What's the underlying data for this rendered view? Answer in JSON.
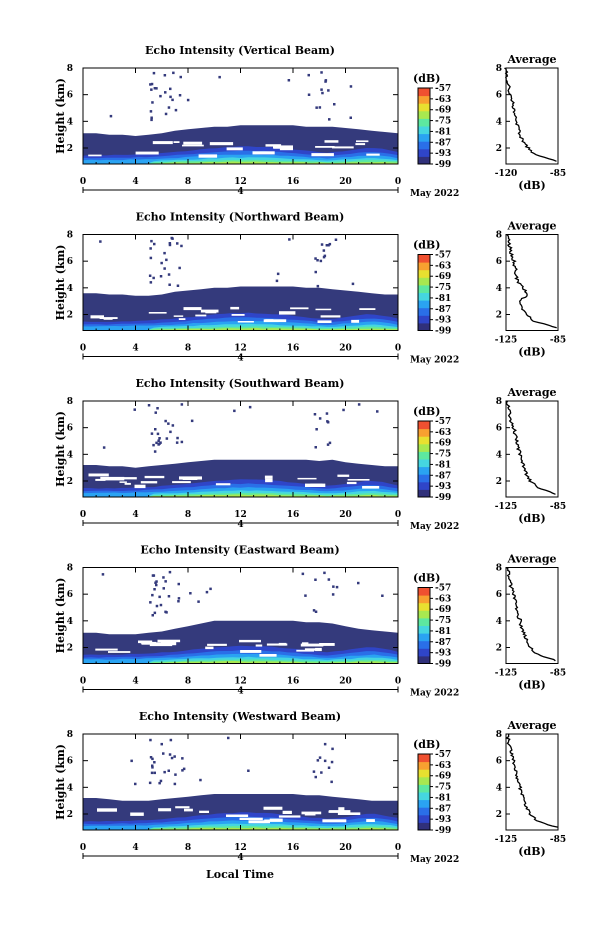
{
  "figure": {
    "xlabel": "Local Time",
    "date_label": "May 2022"
  },
  "chart_data": [
    {
      "type": "heatmap",
      "title": "Echo Intensity (Vertical Beam)",
      "xlabel": "Local Time",
      "ylabel": "Height (km)",
      "x_ticks": [
        "0",
        "4",
        "8",
        "12",
        "16",
        "20",
        "0"
      ],
      "x_range": [
        0,
        24
      ],
      "y_ticks": [
        "2",
        "4",
        "6",
        "8"
      ],
      "y_range": [
        0.8,
        8
      ],
      "day_marker": "4",
      "date": "May 2022",
      "colorbar": {
        "unit": "(dB)",
        "ticks": [
          "-57",
          "-63",
          "-69",
          "-75",
          "-81",
          "-87",
          "-93",
          "-99"
        ],
        "range": [
          -99,
          -57
        ]
      },
      "cloud_top_km": [
        3.1,
        3.1,
        3.0,
        3.0,
        2.9,
        3.0,
        3.1,
        3.3,
        3.4,
        3.5,
        3.6,
        3.6,
        3.7,
        3.7,
        3.7,
        3.7,
        3.7,
        3.6,
        3.6,
        3.6,
        3.5,
        3.4,
        3.3,
        3.2,
        3.1
      ],
      "profile": {
        "title": "Average",
        "xlabel": "(dB)",
        "x_ticks": [
          "-120",
          "-85"
        ],
        "x_range": [
          -120,
          -85
        ],
        "y_ticks": [
          "2",
          "4",
          "6",
          "8"
        ],
        "y_range": [
          0.8,
          8
        ],
        "heights_km": [
          1.0,
          1.5,
          2.0,
          2.5,
          3.0,
          3.5,
          4.0,
          4.5,
          5.0,
          5.5,
          6.0,
          6.5,
          7.0,
          7.5,
          8.0
        ],
        "values_db": [
          -86,
          -101,
          -105,
          -109,
          -110,
          -112,
          -113,
          -114,
          -115,
          -116,
          -117,
          -118,
          -119,
          -119,
          -120
        ]
      }
    },
    {
      "type": "heatmap",
      "title": "Echo Intensity (Northward Beam)",
      "xlabel": "Local Time",
      "ylabel": "Height (km)",
      "x_ticks": [
        "0",
        "4",
        "8",
        "12",
        "16",
        "20",
        "0"
      ],
      "x_range": [
        0,
        24
      ],
      "y_ticks": [
        "2",
        "4",
        "6",
        "8"
      ],
      "y_range": [
        0.8,
        8
      ],
      "day_marker": "4",
      "date": "May 2022",
      "colorbar": {
        "unit": "(dB)",
        "ticks": [
          "-57",
          "-63",
          "-69",
          "-75",
          "-81",
          "-87",
          "-93",
          "-99"
        ],
        "range": [
          -99,
          -57
        ]
      },
      "cloud_top_km": [
        3.6,
        3.6,
        3.5,
        3.5,
        3.4,
        3.4,
        3.5,
        3.7,
        3.8,
        3.9,
        4.0,
        4.0,
        4.1,
        4.1,
        4.1,
        4.1,
        4.1,
        4.0,
        4.0,
        3.9,
        3.8,
        3.7,
        3.6,
        3.5,
        3.5
      ],
      "profile": {
        "title": "Average",
        "xlabel": "(dB)",
        "x_ticks": [
          "-125",
          "-85"
        ],
        "x_range": [
          -125,
          -85
        ],
        "y_ticks": [
          "2",
          "4",
          "6",
          "8"
        ],
        "y_range": [
          0.8,
          8
        ],
        "heights_km": [
          1.0,
          1.5,
          2.0,
          2.5,
          3.0,
          3.5,
          4.0,
          4.5,
          5.0,
          5.5,
          6.0,
          6.5,
          7.0,
          7.5,
          8.0
        ],
        "values_db": [
          -86,
          -103,
          -110,
          -113,
          -115,
          -108,
          -112,
          -116,
          -117,
          -118,
          -119,
          -121,
          -122,
          -123,
          -124
        ]
      }
    },
    {
      "type": "heatmap",
      "title": "Echo Intensity (Southward Beam)",
      "xlabel": "Local Time",
      "ylabel": "Height (km)",
      "x_ticks": [
        "0",
        "4",
        "8",
        "12",
        "16",
        "20",
        "0"
      ],
      "x_range": [
        0,
        24
      ],
      "y_ticks": [
        "2",
        "4",
        "6",
        "8"
      ],
      "y_range": [
        0.8,
        8
      ],
      "day_marker": "4",
      "date": "May 2022",
      "colorbar": {
        "unit": "(dB)",
        "ticks": [
          "-57",
          "-63",
          "-69",
          "-75",
          "-81",
          "-87",
          "-93",
          "-99"
        ],
        "range": [
          -99,
          -57
        ]
      },
      "cloud_top_km": [
        3.2,
        3.2,
        3.1,
        3.1,
        3.0,
        3.1,
        3.2,
        3.3,
        3.4,
        3.5,
        3.6,
        3.6,
        3.6,
        3.6,
        3.6,
        3.6,
        3.6,
        3.6,
        3.5,
        3.6,
        3.4,
        3.3,
        3.2,
        3.1,
        3.1
      ],
      "profile": {
        "title": "Average",
        "xlabel": "(dB)",
        "x_ticks": [
          "-125",
          "-85"
        ],
        "x_range": [
          -125,
          -85
        ],
        "y_ticks": [
          "2",
          "4",
          "6",
          "8"
        ],
        "y_range": [
          0.8,
          8
        ],
        "heights_km": [
          1.0,
          1.5,
          2.0,
          2.5,
          3.0,
          3.5,
          4.0,
          4.5,
          5.0,
          5.5,
          6.0,
          6.5,
          7.0,
          7.5,
          8.0
        ],
        "values_db": [
          -86,
          -100,
          -106,
          -109,
          -111,
          -113,
          -114,
          -116,
          -117,
          -118,
          -119,
          -121,
          -122,
          -123,
          -124
        ]
      }
    },
    {
      "type": "heatmap",
      "title": "Echo Intensity (Eastward Beam)",
      "xlabel": "Local Time",
      "ylabel": "Height (km)",
      "x_ticks": [
        "0",
        "4",
        "8",
        "12",
        "16",
        "20",
        "0"
      ],
      "x_range": [
        0,
        24
      ],
      "y_ticks": [
        "2",
        "4",
        "6",
        "8"
      ],
      "y_range": [
        0.8,
        8
      ],
      "day_marker": "4",
      "date": "May 2022",
      "colorbar": {
        "unit": "(dB)",
        "ticks": [
          "-57",
          "-63",
          "-69",
          "-75",
          "-81",
          "-87",
          "-93",
          "-99"
        ],
        "range": [
          -99,
          -57
        ]
      },
      "cloud_top_km": [
        3.1,
        3.1,
        3.0,
        3.0,
        3.0,
        3.1,
        3.2,
        3.4,
        3.6,
        3.8,
        4.0,
        4.0,
        4.0,
        4.0,
        4.0,
        4.0,
        4.0,
        3.9,
        3.9,
        3.8,
        3.6,
        3.4,
        3.3,
        3.2,
        3.1
      ],
      "profile": {
        "title": "Average",
        "xlabel": "(dB)",
        "x_ticks": [
          "-125",
          "-85"
        ],
        "x_range": [
          -125,
          -85
        ],
        "y_ticks": [
          "2",
          "4",
          "6",
          "8"
        ],
        "y_range": [
          0.8,
          8
        ],
        "heights_km": [
          1.0,
          1.5,
          2.0,
          2.5,
          3.0,
          3.5,
          4.0,
          4.5,
          5.0,
          5.5,
          6.0,
          6.5,
          7.0,
          7.5,
          8.0
        ],
        "values_db": [
          -86,
          -101,
          -106,
          -109,
          -111,
          -113,
          -114,
          -116,
          -117,
          -118,
          -119,
          -121,
          -122,
          -123,
          -124
        ]
      }
    },
    {
      "type": "heatmap",
      "title": "Echo Intensity (Westward Beam)",
      "xlabel": "Local Time",
      "ylabel": "Height (km)",
      "x_ticks": [
        "0",
        "4",
        "8",
        "12",
        "16",
        "20",
        "0"
      ],
      "x_range": [
        0,
        24
      ],
      "y_ticks": [
        "2",
        "4",
        "6",
        "8"
      ],
      "y_range": [
        0.8,
        8
      ],
      "day_marker": "4",
      "date": "May 2022",
      "colorbar": {
        "unit": "(dB)",
        "ticks": [
          "-57",
          "-63",
          "-69",
          "-75",
          "-81",
          "-87",
          "-93",
          "-99"
        ],
        "range": [
          -99,
          -57
        ]
      },
      "cloud_top_km": [
        3.2,
        3.2,
        3.1,
        3.0,
        3.0,
        3.0,
        3.1,
        3.2,
        3.3,
        3.4,
        3.5,
        3.5,
        3.5,
        3.5,
        3.5,
        3.5,
        3.5,
        3.4,
        3.4,
        3.3,
        3.2,
        3.1,
        3.0,
        3.0,
        3.0
      ],
      "profile": {
        "title": "Average",
        "xlabel": "(dB)",
        "x_ticks": [
          "-125",
          "-85"
        ],
        "x_range": [
          -125,
          -85
        ],
        "y_ticks": [
          "2",
          "4",
          "6",
          "8"
        ],
        "y_range": [
          0.8,
          8
        ],
        "heights_km": [
          1.0,
          1.5,
          2.0,
          2.5,
          3.0,
          3.5,
          4.0,
          4.5,
          5.0,
          5.5,
          6.0,
          6.5,
          7.0,
          7.5,
          8.0
        ],
        "values_db": [
          -86,
          -101,
          -106,
          -109,
          -111,
          -113,
          -114,
          -116,
          -117,
          -118,
          -119,
          -121,
          -122,
          -123,
          -124
        ]
      }
    }
  ],
  "colors": {
    "colormap": [
      "#30307a",
      "#2f45c8",
      "#2a6fe8",
      "#2aa3f2",
      "#45d6e0",
      "#5de8a0",
      "#a8e850",
      "#e8e030",
      "#f8a030",
      "#f05030"
    ],
    "cloud_base": "#343a7c"
  }
}
